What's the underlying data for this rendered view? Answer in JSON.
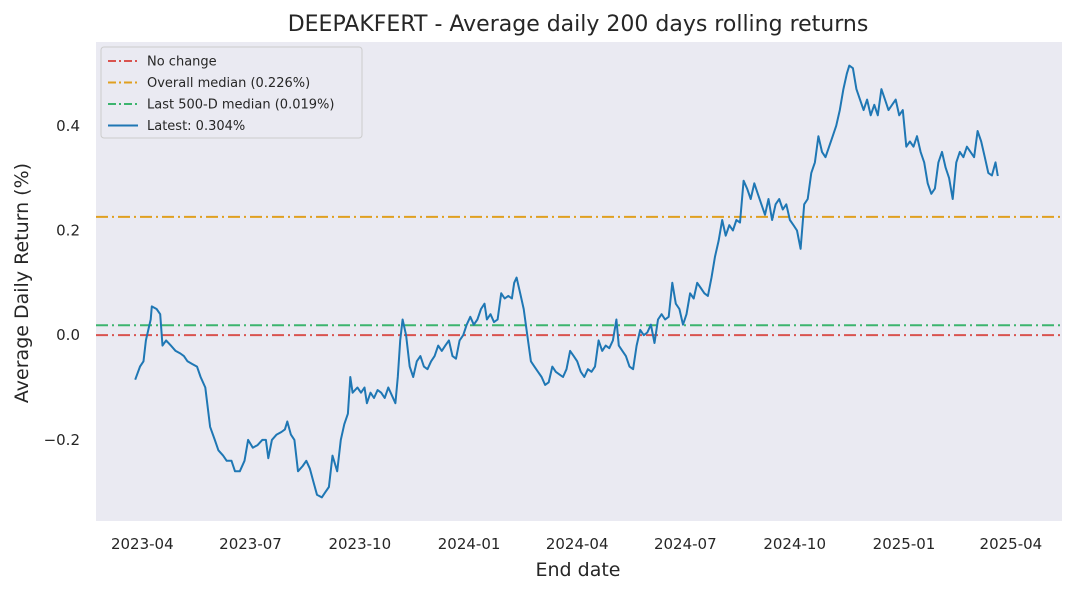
{
  "chart_data": {
    "type": "line",
    "title": "DEEPAKFERT - Average daily 200 days rolling returns",
    "xlabel": "End date",
    "ylabel": "Average Daily Return (%)",
    "xlim": [
      "2023-02-21",
      "2025-05-14"
    ],
    "ylim": [
      -0.355,
      0.56
    ],
    "grid": false,
    "legend_position": "top-left",
    "x_ticks": [
      "2023-04",
      "2023-07",
      "2023-10",
      "2024-01",
      "2024-04",
      "2024-07",
      "2024-10",
      "2025-01",
      "2025-04"
    ],
    "y_ticks": [
      -0.2,
      0.0,
      0.2,
      0.4
    ],
    "y_tick_labels": [
      "−0.2",
      "0.0",
      "0.2",
      "0.4"
    ],
    "reference_lines": [
      {
        "name": "No change",
        "value": 0.0,
        "color": "#d9534f",
        "style": "dashdot"
      },
      {
        "name": "Overall median (0.226%)",
        "value": 0.226,
        "color": "#e0a020",
        "style": "dashdot"
      },
      {
        "name": "Last 500-D median (0.019%)",
        "value": 0.019,
        "color": "#3cb46e",
        "style": "dashdot"
      }
    ],
    "series": [
      {
        "name": "Latest: 0.304%",
        "color": "#1f77b4",
        "points": [
          [
            "2023-03-26",
            -0.085
          ],
          [
            "2023-03-30",
            -0.06
          ],
          [
            "2023-04-02",
            -0.05
          ],
          [
            "2023-04-04",
            -0.01
          ],
          [
            "2023-04-06",
            0.01
          ],
          [
            "2023-04-08",
            0.03
          ],
          [
            "2023-04-09",
            0.055
          ],
          [
            "2023-04-13",
            0.05
          ],
          [
            "2023-04-16",
            0.04
          ],
          [
            "2023-04-18",
            -0.02
          ],
          [
            "2023-04-21",
            -0.01
          ],
          [
            "2023-04-25",
            -0.02
          ],
          [
            "2023-04-29",
            -0.03
          ],
          [
            "2023-05-03",
            -0.035
          ],
          [
            "2023-05-06",
            -0.04
          ],
          [
            "2023-05-09",
            -0.05
          ],
          [
            "2023-05-13",
            -0.055
          ],
          [
            "2023-05-17",
            -0.06
          ],
          [
            "2023-05-20",
            -0.08
          ],
          [
            "2023-05-24",
            -0.1
          ],
          [
            "2023-05-28",
            -0.175
          ],
          [
            "2023-06-01",
            -0.2
          ],
          [
            "2023-06-04",
            -0.22
          ],
          [
            "2023-06-08",
            -0.23
          ],
          [
            "2023-06-11",
            -0.24
          ],
          [
            "2023-06-15",
            -0.24
          ],
          [
            "2023-06-18",
            -0.26
          ],
          [
            "2023-06-22",
            -0.26
          ],
          [
            "2023-06-26",
            -0.24
          ],
          [
            "2023-06-29",
            -0.2
          ],
          [
            "2023-07-03",
            -0.215
          ],
          [
            "2023-07-07",
            -0.21
          ],
          [
            "2023-07-11",
            -0.2
          ],
          [
            "2023-07-14",
            -0.2
          ],
          [
            "2023-07-16",
            -0.235
          ],
          [
            "2023-07-19",
            -0.2
          ],
          [
            "2023-07-23",
            -0.19
          ],
          [
            "2023-07-27",
            -0.185
          ],
          [
            "2023-07-30",
            -0.18
          ],
          [
            "2023-08-01",
            -0.165
          ],
          [
            "2023-08-04",
            -0.19
          ],
          [
            "2023-08-07",
            -0.2
          ],
          [
            "2023-08-10",
            -0.26
          ],
          [
            "2023-08-14",
            -0.25
          ],
          [
            "2023-08-17",
            -0.24
          ],
          [
            "2023-08-20",
            -0.255
          ],
          [
            "2023-08-23",
            -0.28
          ],
          [
            "2023-08-26",
            -0.305
          ],
          [
            "2023-08-30",
            -0.31
          ],
          [
            "2023-09-02",
            -0.3
          ],
          [
            "2023-09-05",
            -0.29
          ],
          [
            "2023-09-08",
            -0.23
          ],
          [
            "2023-09-12",
            -0.26
          ],
          [
            "2023-09-15",
            -0.2
          ],
          [
            "2023-09-18",
            -0.17
          ],
          [
            "2023-09-21",
            -0.15
          ],
          [
            "2023-09-23",
            -0.08
          ],
          [
            "2023-09-25",
            -0.11
          ],
          [
            "2023-09-29",
            -0.1
          ],
          [
            "2023-10-02",
            -0.11
          ],
          [
            "2023-10-05",
            -0.1
          ],
          [
            "2023-10-07",
            -0.13
          ],
          [
            "2023-10-10",
            -0.11
          ],
          [
            "2023-10-13",
            -0.12
          ],
          [
            "2023-10-16",
            -0.105
          ],
          [
            "2023-10-19",
            -0.11
          ],
          [
            "2023-10-22",
            -0.12
          ],
          [
            "2023-10-25",
            -0.1
          ],
          [
            "2023-10-28",
            -0.115
          ],
          [
            "2023-10-31",
            -0.13
          ],
          [
            "2023-11-02",
            -0.08
          ],
          [
            "2023-11-04",
            -0.01
          ],
          [
            "2023-11-06",
            0.03
          ],
          [
            "2023-11-09",
            0.0
          ],
          [
            "2023-11-12",
            -0.06
          ],
          [
            "2023-11-15",
            -0.08
          ],
          [
            "2023-11-18",
            -0.05
          ],
          [
            "2023-11-21",
            -0.04
          ],
          [
            "2023-11-24",
            -0.06
          ],
          [
            "2023-11-27",
            -0.065
          ],
          [
            "2023-11-30",
            -0.05
          ],
          [
            "2023-12-03",
            -0.04
          ],
          [
            "2023-12-06",
            -0.02
          ],
          [
            "2023-12-09",
            -0.03
          ],
          [
            "2023-12-12",
            -0.02
          ],
          [
            "2023-12-15",
            -0.01
          ],
          [
            "2023-12-18",
            -0.04
          ],
          [
            "2023-12-21",
            -0.045
          ],
          [
            "2023-12-24",
            -0.01
          ],
          [
            "2023-12-27",
            0.0
          ],
          [
            "2023-12-30",
            0.02
          ],
          [
            "2024-01-02",
            0.035
          ],
          [
            "2024-01-05",
            0.02
          ],
          [
            "2024-01-08",
            0.03
          ],
          [
            "2024-01-11",
            0.05
          ],
          [
            "2024-01-14",
            0.06
          ],
          [
            "2024-01-16",
            0.03
          ],
          [
            "2024-01-19",
            0.04
          ],
          [
            "2024-01-22",
            0.025
          ],
          [
            "2024-01-25",
            0.03
          ],
          [
            "2024-01-28",
            0.08
          ],
          [
            "2024-01-31",
            0.07
          ],
          [
            "2024-02-03",
            0.075
          ],
          [
            "2024-02-06",
            0.07
          ],
          [
            "2024-02-08",
            0.1
          ],
          [
            "2024-02-10",
            0.11
          ],
          [
            "2024-02-13",
            0.08
          ],
          [
            "2024-02-16",
            0.05
          ],
          [
            "2024-02-19",
            0.0
          ],
          [
            "2024-02-22",
            -0.05
          ],
          [
            "2024-02-25",
            -0.06
          ],
          [
            "2024-02-28",
            -0.07
          ],
          [
            "2024-03-02",
            -0.08
          ],
          [
            "2024-03-05",
            -0.095
          ],
          [
            "2024-03-08",
            -0.09
          ],
          [
            "2024-03-11",
            -0.06
          ],
          [
            "2024-03-14",
            -0.07
          ],
          [
            "2024-03-17",
            -0.075
          ],
          [
            "2024-03-20",
            -0.08
          ],
          [
            "2024-03-23",
            -0.065
          ],
          [
            "2024-03-26",
            -0.03
          ],
          [
            "2024-03-29",
            -0.04
          ],
          [
            "2024-04-01",
            -0.05
          ],
          [
            "2024-04-04",
            -0.07
          ],
          [
            "2024-04-07",
            -0.08
          ],
          [
            "2024-04-10",
            -0.065
          ],
          [
            "2024-04-13",
            -0.07
          ],
          [
            "2024-04-16",
            -0.06
          ],
          [
            "2024-04-19",
            -0.01
          ],
          [
            "2024-04-22",
            -0.03
          ],
          [
            "2024-04-25",
            -0.02
          ],
          [
            "2024-04-28",
            -0.025
          ],
          [
            "2024-05-01",
            -0.01
          ],
          [
            "2024-05-04",
            0.03
          ],
          [
            "2024-05-06",
            -0.02
          ],
          [
            "2024-05-09",
            -0.03
          ],
          [
            "2024-05-12",
            -0.04
          ],
          [
            "2024-05-15",
            -0.06
          ],
          [
            "2024-05-18",
            -0.065
          ],
          [
            "2024-05-21",
            -0.02
          ],
          [
            "2024-05-24",
            0.01
          ],
          [
            "2024-05-27",
            0.0
          ],
          [
            "2024-05-30",
            0.005
          ],
          [
            "2024-06-02",
            0.02
          ],
          [
            "2024-06-05",
            -0.015
          ],
          [
            "2024-06-08",
            0.03
          ],
          [
            "2024-06-11",
            0.04
          ],
          [
            "2024-06-14",
            0.03
          ],
          [
            "2024-06-17",
            0.035
          ],
          [
            "2024-06-20",
            0.1
          ],
          [
            "2024-06-23",
            0.06
          ],
          [
            "2024-06-26",
            0.05
          ],
          [
            "2024-06-29",
            0.02
          ],
          [
            "2024-07-02",
            0.04
          ],
          [
            "2024-07-05",
            0.08
          ],
          [
            "2024-07-08",
            0.07
          ],
          [
            "2024-07-11",
            0.1
          ],
          [
            "2024-07-14",
            0.09
          ],
          [
            "2024-07-17",
            0.08
          ],
          [
            "2024-07-20",
            0.075
          ],
          [
            "2024-07-23",
            0.11
          ],
          [
            "2024-07-26",
            0.15
          ],
          [
            "2024-07-29",
            0.18
          ],
          [
            "2024-08-01",
            0.22
          ],
          [
            "2024-08-04",
            0.19
          ],
          [
            "2024-08-07",
            0.21
          ],
          [
            "2024-08-10",
            0.2
          ],
          [
            "2024-08-13",
            0.22
          ],
          [
            "2024-08-16",
            0.215
          ],
          [
            "2024-08-19",
            0.295
          ],
          [
            "2024-08-22",
            0.28
          ],
          [
            "2024-08-25",
            0.26
          ],
          [
            "2024-08-28",
            0.29
          ],
          [
            "2024-08-31",
            0.27
          ],
          [
            "2024-09-03",
            0.25
          ],
          [
            "2024-09-06",
            0.23
          ],
          [
            "2024-09-09",
            0.26
          ],
          [
            "2024-09-12",
            0.22
          ],
          [
            "2024-09-15",
            0.25
          ],
          [
            "2024-09-18",
            0.26
          ],
          [
            "2024-09-21",
            0.24
          ],
          [
            "2024-09-24",
            0.25
          ],
          [
            "2024-09-27",
            0.22
          ],
          [
            "2024-09-30",
            0.21
          ],
          [
            "2024-10-03",
            0.2
          ],
          [
            "2024-10-06",
            0.165
          ],
          [
            "2024-10-09",
            0.25
          ],
          [
            "2024-10-12",
            0.26
          ],
          [
            "2024-10-15",
            0.31
          ],
          [
            "2024-10-18",
            0.33
          ],
          [
            "2024-10-21",
            0.38
          ],
          [
            "2024-10-24",
            0.35
          ],
          [
            "2024-10-27",
            0.34
          ],
          [
            "2024-10-30",
            0.36
          ],
          [
            "2024-11-02",
            0.38
          ],
          [
            "2024-11-05",
            0.4
          ],
          [
            "2024-11-08",
            0.43
          ],
          [
            "2024-11-11",
            0.47
          ],
          [
            "2024-11-14",
            0.5
          ],
          [
            "2024-11-16",
            0.515
          ],
          [
            "2024-11-19",
            0.51
          ],
          [
            "2024-11-22",
            0.47
          ],
          [
            "2024-11-25",
            0.45
          ],
          [
            "2024-11-28",
            0.43
          ],
          [
            "2024-12-01",
            0.45
          ],
          [
            "2024-12-04",
            0.42
          ],
          [
            "2024-12-07",
            0.44
          ],
          [
            "2024-12-10",
            0.42
          ],
          [
            "2024-12-13",
            0.47
          ],
          [
            "2024-12-16",
            0.45
          ],
          [
            "2024-12-19",
            0.43
          ],
          [
            "2024-12-22",
            0.44
          ],
          [
            "2024-12-25",
            0.45
          ],
          [
            "2024-12-28",
            0.42
          ],
          [
            "2024-12-31",
            0.43
          ],
          [
            "2025-01-03",
            0.36
          ],
          [
            "2025-01-06",
            0.37
          ],
          [
            "2025-01-09",
            0.36
          ],
          [
            "2025-01-12",
            0.38
          ],
          [
            "2025-01-15",
            0.35
          ],
          [
            "2025-01-18",
            0.33
          ],
          [
            "2025-01-21",
            0.29
          ],
          [
            "2025-01-24",
            0.27
          ],
          [
            "2025-01-27",
            0.28
          ],
          [
            "2025-01-30",
            0.33
          ],
          [
            "2025-02-02",
            0.35
          ],
          [
            "2025-02-05",
            0.32
          ],
          [
            "2025-02-08",
            0.3
          ],
          [
            "2025-02-11",
            0.26
          ],
          [
            "2025-02-14",
            0.33
          ],
          [
            "2025-02-17",
            0.35
          ],
          [
            "2025-02-20",
            0.34
          ],
          [
            "2025-02-23",
            0.36
          ],
          [
            "2025-02-26",
            0.35
          ],
          [
            "2025-03-01",
            0.34
          ],
          [
            "2025-03-04",
            0.39
          ],
          [
            "2025-03-07",
            0.37
          ],
          [
            "2025-03-10",
            0.34
          ],
          [
            "2025-03-13",
            0.31
          ],
          [
            "2025-03-16",
            0.305
          ],
          [
            "2025-03-19",
            0.33
          ],
          [
            "2025-03-21",
            0.304
          ]
        ]
      }
    ],
    "legend": [
      {
        "label": "No change",
        "color": "#d9534f",
        "style": "dashdot"
      },
      {
        "label": "Overall median (0.226%)",
        "color": "#e0a020",
        "style": "dashdot"
      },
      {
        "label": "Last 500-D median (0.019%)",
        "color": "#3cb46e",
        "style": "dashdot"
      },
      {
        "label": "Latest: 0.304%",
        "color": "#1f77b4",
        "style": "solid"
      }
    ]
  }
}
